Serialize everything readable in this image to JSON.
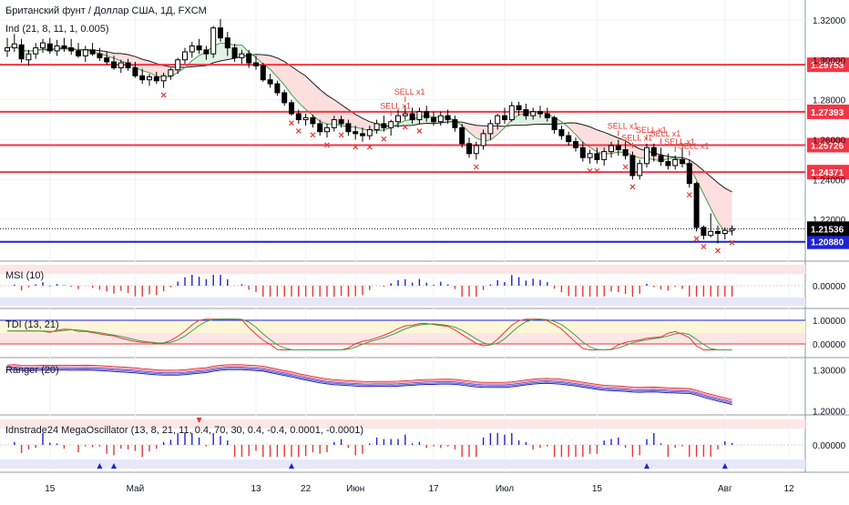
{
  "chart_data": [
    {
      "type": "candlestick",
      "title": "Британский фунт / Доллар США, 1Д, FXCM",
      "indicator_legend": "Ind (21, 8, 11, 1, 0.005)",
      "y_axis": {
        "ylim": [
          1.2,
          1.33
        ],
        "tick_labels": [
          "1.32000",
          "1.30000",
          "1.28000",
          "1.26000",
          "1.24000",
          "1.22000"
        ],
        "tick_values": [
          1.32,
          1.3,
          1.28,
          1.26,
          1.24,
          1.22
        ]
      },
      "candles": [
        [
          1.3045,
          1.311,
          1.3015,
          1.306
        ],
        [
          1.306,
          1.313,
          1.304,
          1.308
        ],
        [
          1.3075,
          1.3105,
          1.2985,
          1.3005
        ],
        [
          1.3,
          1.305,
          1.297,
          1.303
        ],
        [
          1.303,
          1.3085,
          1.3005,
          1.306
        ],
        [
          1.306,
          1.3105,
          1.3035,
          1.3085
        ],
        [
          1.308,
          1.311,
          1.303,
          1.3045
        ],
        [
          1.3045,
          1.31,
          1.302,
          1.307
        ],
        [
          1.307,
          1.311,
          1.304,
          1.306
        ],
        [
          1.306,
          1.3105,
          1.3025,
          1.3045
        ],
        [
          1.3045,
          1.3085,
          1.301,
          1.302
        ],
        [
          1.302,
          1.307,
          1.299,
          1.305
        ],
        [
          1.305,
          1.3085,
          1.302,
          1.303
        ],
        [
          1.303,
          1.306,
          1.2995,
          1.301
        ],
        [
          1.301,
          1.304,
          1.2975,
          1.299
        ],
        [
          1.299,
          1.302,
          1.295,
          1.296
        ],
        [
          1.296,
          1.3,
          1.2935,
          1.2985
        ],
        [
          1.2985,
          1.3005,
          1.2945,
          1.296
        ],
        [
          1.296,
          1.299,
          1.291,
          1.292
        ],
        [
          1.292,
          1.2955,
          1.288,
          1.29
        ],
        [
          1.29,
          1.293,
          1.287,
          1.2915
        ],
        [
          1.2915,
          1.294,
          1.288,
          1.2895
        ],
        [
          1.2895,
          1.2935,
          1.286,
          1.292
        ],
        [
          1.292,
          1.296,
          1.29,
          1.295
        ],
        [
          1.295,
          1.301,
          1.293,
          1.3
        ],
        [
          1.3,
          1.306,
          1.298,
          1.304
        ],
        [
          1.304,
          1.309,
          1.301,
          1.307
        ],
        [
          1.307,
          1.3105,
          1.303,
          1.305
        ],
        [
          1.305,
          1.307,
          1.3,
          1.303
        ],
        [
          1.303,
          1.317,
          1.301,
          1.316
        ],
        [
          1.316,
          1.3205,
          1.309,
          1.311
        ],
        [
          1.311,
          1.314,
          1.302,
          1.306
        ],
        [
          1.306,
          1.308,
          1.299,
          1.301
        ],
        [
          1.301,
          1.305,
          1.298,
          1.303
        ],
        [
          1.303,
          1.305,
          1.296,
          1.2985
        ],
        [
          1.2985,
          1.302,
          1.295,
          1.297
        ],
        [
          1.297,
          1.2985,
          1.289,
          1.29
        ],
        [
          1.29,
          1.293,
          1.286,
          1.288
        ],
        [
          1.288,
          1.2895,
          1.282,
          1.2835
        ],
        [
          1.2835,
          1.285,
          1.277,
          1.2785
        ],
        [
          1.2785,
          1.28,
          1.272,
          1.273
        ],
        [
          1.273,
          1.275,
          1.268,
          1.27
        ],
        [
          1.27,
          1.273,
          1.267,
          1.271
        ],
        [
          1.271,
          1.2725,
          1.266,
          1.268
        ],
        [
          1.268,
          1.27,
          1.262,
          1.264
        ],
        [
          1.264,
          1.268,
          1.261,
          1.266
        ],
        [
          1.266,
          1.272,
          1.264,
          1.27
        ],
        [
          1.27,
          1.272,
          1.266,
          1.268
        ],
        [
          1.268,
          1.27,
          1.262,
          1.264
        ],
        [
          1.264,
          1.267,
          1.26,
          1.263
        ],
        [
          1.263,
          1.266,
          1.259,
          1.262
        ],
        [
          1.262,
          1.267,
          1.26,
          1.265
        ],
        [
          1.265,
          1.27,
          1.263,
          1.268
        ],
        [
          1.268,
          1.272,
          1.264,
          1.266
        ],
        [
          1.266,
          1.27,
          1.262,
          1.269
        ],
        [
          1.269,
          1.275,
          1.266,
          1.272
        ],
        [
          1.272,
          1.277,
          1.27,
          1.273
        ],
        [
          1.273,
          1.276,
          1.268,
          1.27
        ],
        [
          1.27,
          1.276,
          1.268,
          1.274
        ],
        [
          1.274,
          1.277,
          1.269,
          1.271
        ],
        [
          1.271,
          1.274,
          1.267,
          1.269
        ],
        [
          1.269,
          1.274,
          1.267,
          1.272
        ],
        [
          1.272,
          1.275,
          1.268,
          1.27
        ],
        [
          1.27,
          1.272,
          1.264,
          1.266
        ],
        [
          1.266,
          1.268,
          1.256,
          1.258
        ],
        [
          1.258,
          1.261,
          1.251,
          1.253
        ],
        [
          1.253,
          1.259,
          1.25,
          1.257
        ],
        [
          1.257,
          1.265,
          1.255,
          1.263
        ],
        [
          1.263,
          1.27,
          1.26,
          1.268
        ],
        [
          1.268,
          1.273,
          1.265,
          1.272
        ],
        [
          1.272,
          1.276,
          1.268,
          1.27
        ],
        [
          1.27,
          1.279,
          1.269,
          1.277
        ],
        [
          1.277,
          1.279,
          1.272,
          1.275
        ],
        [
          1.275,
          1.278,
          1.27,
          1.272
        ],
        [
          1.272,
          1.276,
          1.27,
          1.274
        ],
        [
          1.274,
          1.277,
          1.271,
          1.273
        ],
        [
          1.273,
          1.276,
          1.269,
          1.271
        ],
        [
          1.271,
          1.272,
          1.263,
          1.265
        ],
        [
          1.265,
          1.267,
          1.26,
          1.262
        ],
        [
          1.262,
          1.264,
          1.257,
          1.259
        ],
        [
          1.259,
          1.261,
          1.254,
          1.256
        ],
        [
          1.256,
          1.259,
          1.249,
          1.251
        ],
        [
          1.251,
          1.255,
          1.248,
          1.253
        ],
        [
          1.253,
          1.256,
          1.248,
          1.25
        ],
        [
          1.25,
          1.256,
          1.247,
          1.254
        ],
        [
          1.254,
          1.259,
          1.251,
          1.257
        ],
        [
          1.257,
          1.26,
          1.252,
          1.255
        ],
        [
          1.255,
          1.259,
          1.25,
          1.252
        ],
        [
          1.252,
          1.254,
          1.24,
          1.242
        ],
        [
          1.242,
          1.25,
          1.24,
          1.248
        ],
        [
          1.248,
          1.258,
          1.246,
          1.256
        ],
        [
          1.256,
          1.258,
          1.249,
          1.252
        ],
        [
          1.252,
          1.256,
          1.247,
          1.249
        ],
        [
          1.249,
          1.253,
          1.245,
          1.247
        ],
        [
          1.247,
          1.252,
          1.245,
          1.25
        ],
        [
          1.25,
          1.256,
          1.246,
          1.248
        ],
        [
          1.248,
          1.25,
          1.236,
          1.238
        ],
        [
          1.238,
          1.239,
          1.214,
          1.216
        ],
        [
          1.216,
          1.217,
          1.21,
          1.212
        ],
        [
          1.212,
          1.223,
          1.211,
          1.214
        ],
        [
          1.214,
          1.217,
          1.208,
          1.213
        ],
        [
          1.213,
          1.216,
          1.21,
          1.2145
        ],
        [
          1.2145,
          1.217,
          1.212,
          1.2154
        ]
      ],
      "x_tick_labels": [
        {
          "label": "15",
          "candle_index": 6
        },
        {
          "label": "Май",
          "candle_index": 18
        },
        {
          "label": "13",
          "candle_index": 35
        },
        {
          "label": "22",
          "candle_index": 42
        },
        {
          "label": "Июн",
          "candle_index": 49
        },
        {
          "label": "17",
          "candle_index": 60
        },
        {
          "label": "Июл",
          "candle_index": 70
        },
        {
          "label": "15",
          "candle_index": 83
        },
        {
          "label": "Авг",
          "candle_index": 101
        },
        {
          "label": "12",
          "candle_index": 110
        }
      ],
      "horizontal_levels": [
        {
          "value": 1.29753,
          "label": "1.29753",
          "color": "#f23645"
        },
        {
          "value": 1.27393,
          "label": "1.27393",
          "color": "#f23645"
        },
        {
          "value": 1.25726,
          "label": "1.25726",
          "color": "#f23645"
        },
        {
          "value": 1.24371,
          "label": "1.24371",
          "color": "#f23645"
        },
        {
          "value": 1.2088,
          "label": "1.20880",
          "color": "#1e22d6"
        }
      ],
      "last_price": {
        "value": 1.21536,
        "label": "1.21536"
      },
      "sell_labels": [
        "SELL x1",
        "SELL x1",
        "SELL x1",
        "SELL x1",
        "SELL x1",
        "SELL x1",
        "SELL x1",
        "SELL x1"
      ]
    },
    {
      "type": "histogram",
      "title": "MSI (10)",
      "tick_labels": [
        "0.00000"
      ],
      "ylim": [
        -1,
        1
      ]
    },
    {
      "type": "line",
      "title": "TDI (13, 21)",
      "tick_labels": [
        "1.00000",
        "0.00000"
      ],
      "ylim": [
        -0.3,
        1.3
      ]
    },
    {
      "type": "line",
      "title": "Ranger (20)",
      "tick_labels": [
        "1.30000",
        "1.20000"
      ],
      "ylim": [
        1.19,
        1.33
      ]
    },
    {
      "type": "histogram",
      "title": "Idnstrade24 MegaOscillator (13, 8, 21, 11, 0.4, 70, 30, 0.4, -0.4, 0.0001, -0.0001)",
      "tick_labels": [
        "0.00000"
      ],
      "ylim": [
        -1,
        1
      ]
    }
  ],
  "colors": {
    "bull": "#ffffff",
    "bear": "#000000",
    "level_red": "#f23645",
    "level_blue": "#1e22d6",
    "signal": "#e53935",
    "envelope_fill": "#fcdede",
    "envelope_fill_green": "#dff2e3",
    "axis_text": "#131722"
  }
}
